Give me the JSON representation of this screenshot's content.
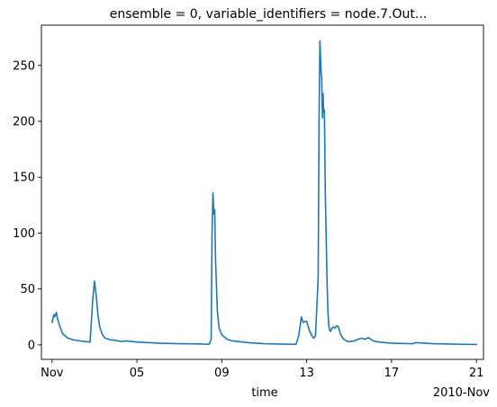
{
  "chart_data": {
    "type": "line",
    "title": "ensemble = 0, variable_identifiers = node.7.Out...",
    "xlabel": "time",
    "ylabel": "",
    "x_offset_label": "2010-Nov",
    "grid": false,
    "legend": "none",
    "colors": {
      "series": "#1f77b4"
    },
    "xlim": [
      "2010-10-31T12:00",
      "2010-11-21T08:00"
    ],
    "ylim": [
      -13,
      286
    ],
    "x_ticks": [
      {
        "date": "2010-11-01",
        "label": "Nov"
      },
      {
        "date": "2010-11-05",
        "label": "05"
      },
      {
        "date": "2010-11-09",
        "label": "09"
      },
      {
        "date": "2010-11-13",
        "label": "13"
      },
      {
        "date": "2010-11-17",
        "label": "17"
      },
      {
        "date": "2010-11-21",
        "label": "21"
      }
    ],
    "y_ticks": [
      0,
      50,
      100,
      150,
      200,
      250
    ],
    "series": [
      {
        "x": [
          "2010-11-01T00:00",
          "2010-11-01T02:00",
          "2010-11-01T03:00",
          "2010-11-01T05:00",
          "2010-11-01T06:00",
          "2010-11-01T09:00",
          "2010-11-01T12:00",
          "2010-11-01T18:00",
          "2010-11-02T00:00",
          "2010-11-02T12:00",
          "2010-11-02T19:00",
          "2010-11-02T22:00",
          "2010-11-03T00:00",
          "2010-11-03T02:00",
          "2010-11-03T04:00",
          "2010-11-03T06:00",
          "2010-11-03T09:00",
          "2010-11-03T12:00",
          "2010-11-03T18:00",
          "2010-11-04T00:00",
          "2010-11-04T06:00",
          "2010-11-04T12:00",
          "2010-11-05T00:00",
          "2010-11-06T00:00",
          "2010-11-07T00:00",
          "2010-11-08T00:00",
          "2010-11-08T04:00",
          "2010-11-08T08:00",
          "2010-11-08T10:00",
          "2010-11-08T12:00",
          "2010-11-08T13:00",
          "2010-11-08T14:00",
          "2010-11-08T15:00",
          "2010-11-08T16:00",
          "2010-11-08T17:00",
          "2010-11-08T19:00",
          "2010-11-08T21:00",
          "2010-11-09T00:00",
          "2010-11-09T06:00",
          "2010-11-09T12:00",
          "2010-11-10T00:00",
          "2010-11-10T12:00",
          "2010-11-10T13:00",
          "2010-11-10T14:00",
          "2010-11-11T00:00",
          "2010-11-12T00:00",
          "2010-11-12T12:00",
          "2010-11-12T15:00",
          "2010-11-12T18:00",
          "2010-11-12T20:00",
          "2010-11-12T22:00",
          "2010-11-13T00:00",
          "2010-11-13T03:00",
          "2010-11-13T06:00",
          "2010-11-13T08:00",
          "2010-11-13T10:00",
          "2010-11-13T13:00",
          "2010-11-13T14:00",
          "2010-11-13T15:00",
          "2010-11-13T16:00",
          "2010-11-13T16:30",
          "2010-11-13T17:00",
          "2010-11-13T17:30",
          "2010-11-13T18:00",
          "2010-11-13T18:30",
          "2010-11-13T19:00",
          "2010-11-13T19:30",
          "2010-11-13T20:00",
          "2010-11-13T20:30",
          "2010-11-13T21:00",
          "2010-11-13T22:00",
          "2010-11-13T23:00",
          "2010-11-14T00:00",
          "2010-11-14T01:00",
          "2010-11-14T02:00",
          "2010-11-14T03:00",
          "2010-11-14T04:00",
          "2010-11-14T06:00",
          "2010-11-14T08:00",
          "2010-11-14T10:00",
          "2010-11-14T12:00",
          "2010-11-14T14:00",
          "2010-11-14T16:00",
          "2010-11-14T18:00",
          "2010-11-14T22:00",
          "2010-11-15T02:00",
          "2010-11-15T06:00",
          "2010-11-15T10:00",
          "2010-11-15T14:00",
          "2010-11-15T18:00",
          "2010-11-15T22:00",
          "2010-11-16T02:00",
          "2010-11-16T06:00",
          "2010-11-16T10:00",
          "2010-11-16T16:00",
          "2010-11-17T00:00",
          "2010-11-17T12:00",
          "2010-11-18T00:00",
          "2010-11-18T03:00",
          "2010-11-18T12:00",
          "2010-11-19T00:00",
          "2010-11-20T00:00",
          "2010-11-21T00:00"
        ],
        "y": [
          20,
          27,
          25,
          29,
          24,
          16,
          10,
          6,
          4.5,
          3,
          2.5,
          40,
          57,
          44,
          26,
          16,
          9,
          6,
          4.5,
          4,
          3,
          3.5,
          2.5,
          1.5,
          1,
          0.8,
          0.6,
          0.5,
          0.8,
          5,
          100,
          136,
          117,
          121,
          75,
          30,
          15,
          9,
          5,
          3.5,
          2.5,
          1.5,
          2,
          1.5,
          1,
          0.6,
          0.5,
          8,
          25,
          20,
          21,
          21,
          13,
          8,
          6,
          8,
          60,
          200,
          272,
          250,
          242,
          240,
          215,
          203,
          225,
          212,
          208,
          210,
          180,
          140,
          100,
          60,
          30,
          18,
          13,
          12,
          14,
          16,
          15,
          17,
          16,
          10,
          7,
          5,
          3,
          3,
          3.5,
          5,
          6,
          5,
          6.5,
          4,
          3,
          2.5,
          2,
          1.5,
          1.2,
          1,
          2,
          1.5,
          1,
          0.6,
          0.3
        ]
      }
    ]
  }
}
